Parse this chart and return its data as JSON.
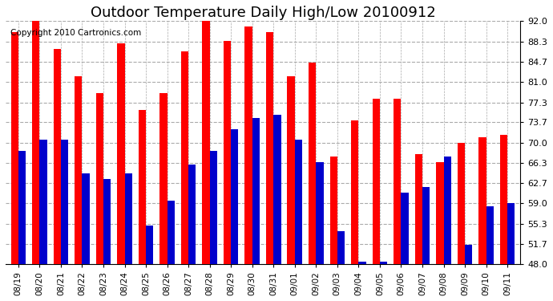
{
  "title": "Outdoor Temperature Daily High/Low 20100912",
  "copyright": "Copyright 2010 Cartronics.com",
  "dates": [
    "08/19",
    "08/20",
    "08/21",
    "08/22",
    "08/23",
    "08/24",
    "08/25",
    "08/26",
    "08/27",
    "08/28",
    "08/29",
    "08/30",
    "08/31",
    "09/01",
    "09/02",
    "09/03",
    "09/04",
    "09/05",
    "09/06",
    "09/07",
    "09/08",
    "09/09",
    "09/10",
    "09/11"
  ],
  "highs": [
    90.0,
    92.0,
    87.0,
    82.0,
    79.0,
    88.0,
    76.0,
    79.0,
    86.5,
    92.0,
    88.5,
    91.0,
    90.0,
    82.0,
    84.5,
    67.5,
    74.0,
    78.0,
    78.0,
    68.0,
    66.5,
    70.0,
    71.0,
    71.5
  ],
  "lows": [
    68.5,
    70.5,
    70.5,
    64.5,
    63.5,
    64.5,
    55.0,
    59.5,
    66.0,
    68.5,
    72.5,
    74.5,
    75.0,
    70.5,
    66.5,
    54.0,
    48.5,
    48.5,
    61.0,
    62.0,
    67.5,
    51.5,
    58.5,
    59.0
  ],
  "bar_width": 0.35,
  "ylim": [
    48.0,
    92.0
  ],
  "yticks": [
    48.0,
    51.7,
    55.3,
    59.0,
    62.7,
    66.3,
    70.0,
    73.7,
    77.3,
    81.0,
    84.7,
    88.3,
    92.0
  ],
  "high_color": "#ff0000",
  "low_color": "#0000cc",
  "bg_color": "#ffffff",
  "plot_bg_color": "#ffffff",
  "grid_color": "#aaaaaa",
  "title_fontsize": 13,
  "copyright_fontsize": 7.5
}
